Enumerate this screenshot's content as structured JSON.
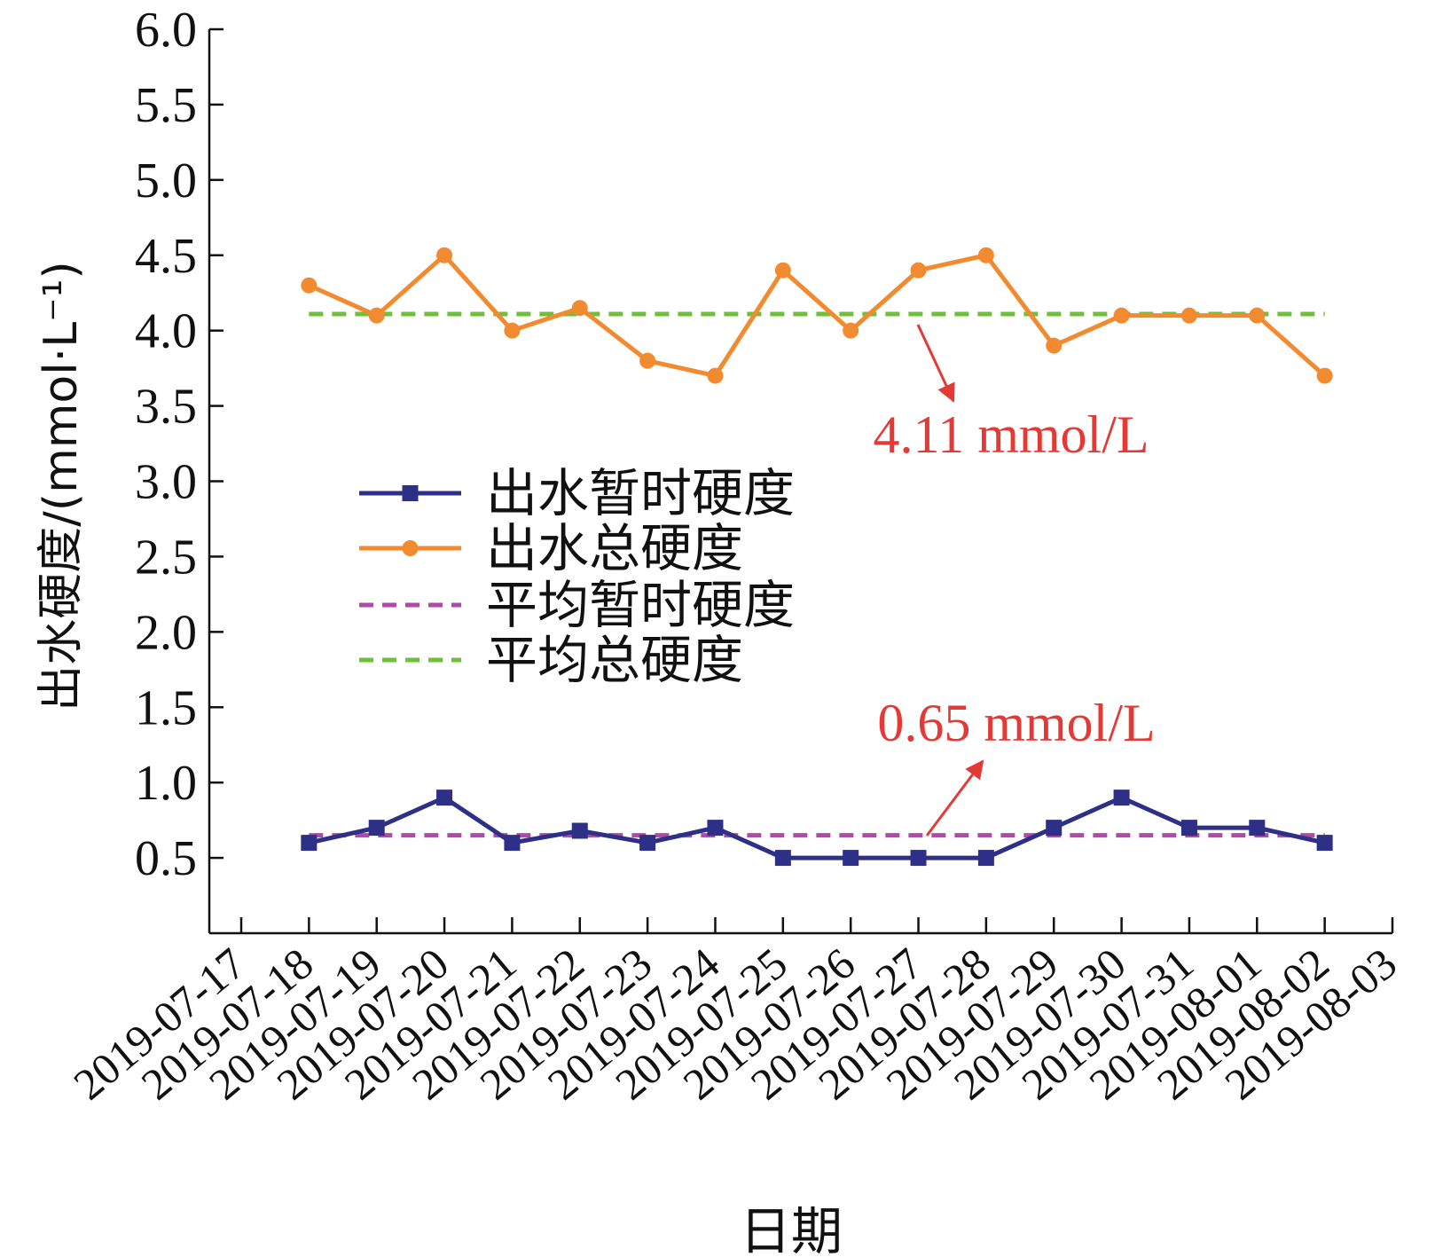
{
  "chart_data": {
    "type": "line",
    "xlabel": "日期",
    "ylabel": "出水硬度/(mmol·L⁻¹)",
    "ylim": [
      0,
      6.0
    ],
    "yticks": [
      "6.0",
      "5.5",
      "5.0",
      "4.5",
      "4.0",
      "3.5",
      "3.0",
      "2.5",
      "2.0",
      "1.5",
      "1.0",
      "0.5"
    ],
    "categories": [
      "2019-07-17",
      "2019-07-18",
      "2019-07-19",
      "2019-07-20",
      "2019-07-21",
      "2019-07-22",
      "2019-07-23",
      "2019-07-24",
      "2019-07-25",
      "2019-07-26",
      "2019-07-27",
      "2019-07-28",
      "2019-07-29",
      "2019-07-30",
      "2019-07-31",
      "2019-08-01",
      "2019-08-02",
      "2019-08-03"
    ],
    "series": [
      {
        "name": "出水暂时硬度",
        "color": "#2e2f86",
        "marker": "square",
        "style": "solid",
        "x": [
          "2019-07-18",
          "2019-07-19",
          "2019-07-20",
          "2019-07-21",
          "2019-07-22",
          "2019-07-23",
          "2019-07-24",
          "2019-07-25",
          "2019-07-26",
          "2019-07-27",
          "2019-07-28",
          "2019-07-29",
          "2019-07-30",
          "2019-07-31",
          "2019-08-01",
          "2019-08-02"
        ],
        "values": [
          0.6,
          0.7,
          0.9,
          0.6,
          0.68,
          0.6,
          0.7,
          0.5,
          0.5,
          0.5,
          0.5,
          0.7,
          0.9,
          0.7,
          0.7,
          0.6
        ]
      },
      {
        "name": "出水总硬度",
        "color": "#f28a30",
        "marker": "circle",
        "style": "solid",
        "x": [
          "2019-07-18",
          "2019-07-19",
          "2019-07-20",
          "2019-07-21",
          "2019-07-22",
          "2019-07-23",
          "2019-07-24",
          "2019-07-25",
          "2019-07-26",
          "2019-07-27",
          "2019-07-28",
          "2019-07-29",
          "2019-07-30",
          "2019-07-31",
          "2019-08-01",
          "2019-08-02"
        ],
        "values": [
          4.3,
          4.1,
          4.5,
          4.0,
          4.15,
          3.8,
          3.7,
          4.4,
          4.0,
          4.4,
          4.5,
          3.9,
          4.1,
          4.1,
          4.1,
          3.7
        ]
      },
      {
        "name": "平均暂时硬度",
        "color": "#b04aa8",
        "style": "dashed",
        "value": 0.65
      },
      {
        "name": "平均总硬度",
        "color": "#6fbf3a",
        "style": "dashed",
        "value": 4.11
      }
    ],
    "annotations": [
      {
        "text": "4.11 mmol/L",
        "color": "#e53935"
      },
      {
        "text": "0.65 mmol/L",
        "color": "#e53935"
      }
    ],
    "legend_position": "center-left"
  }
}
